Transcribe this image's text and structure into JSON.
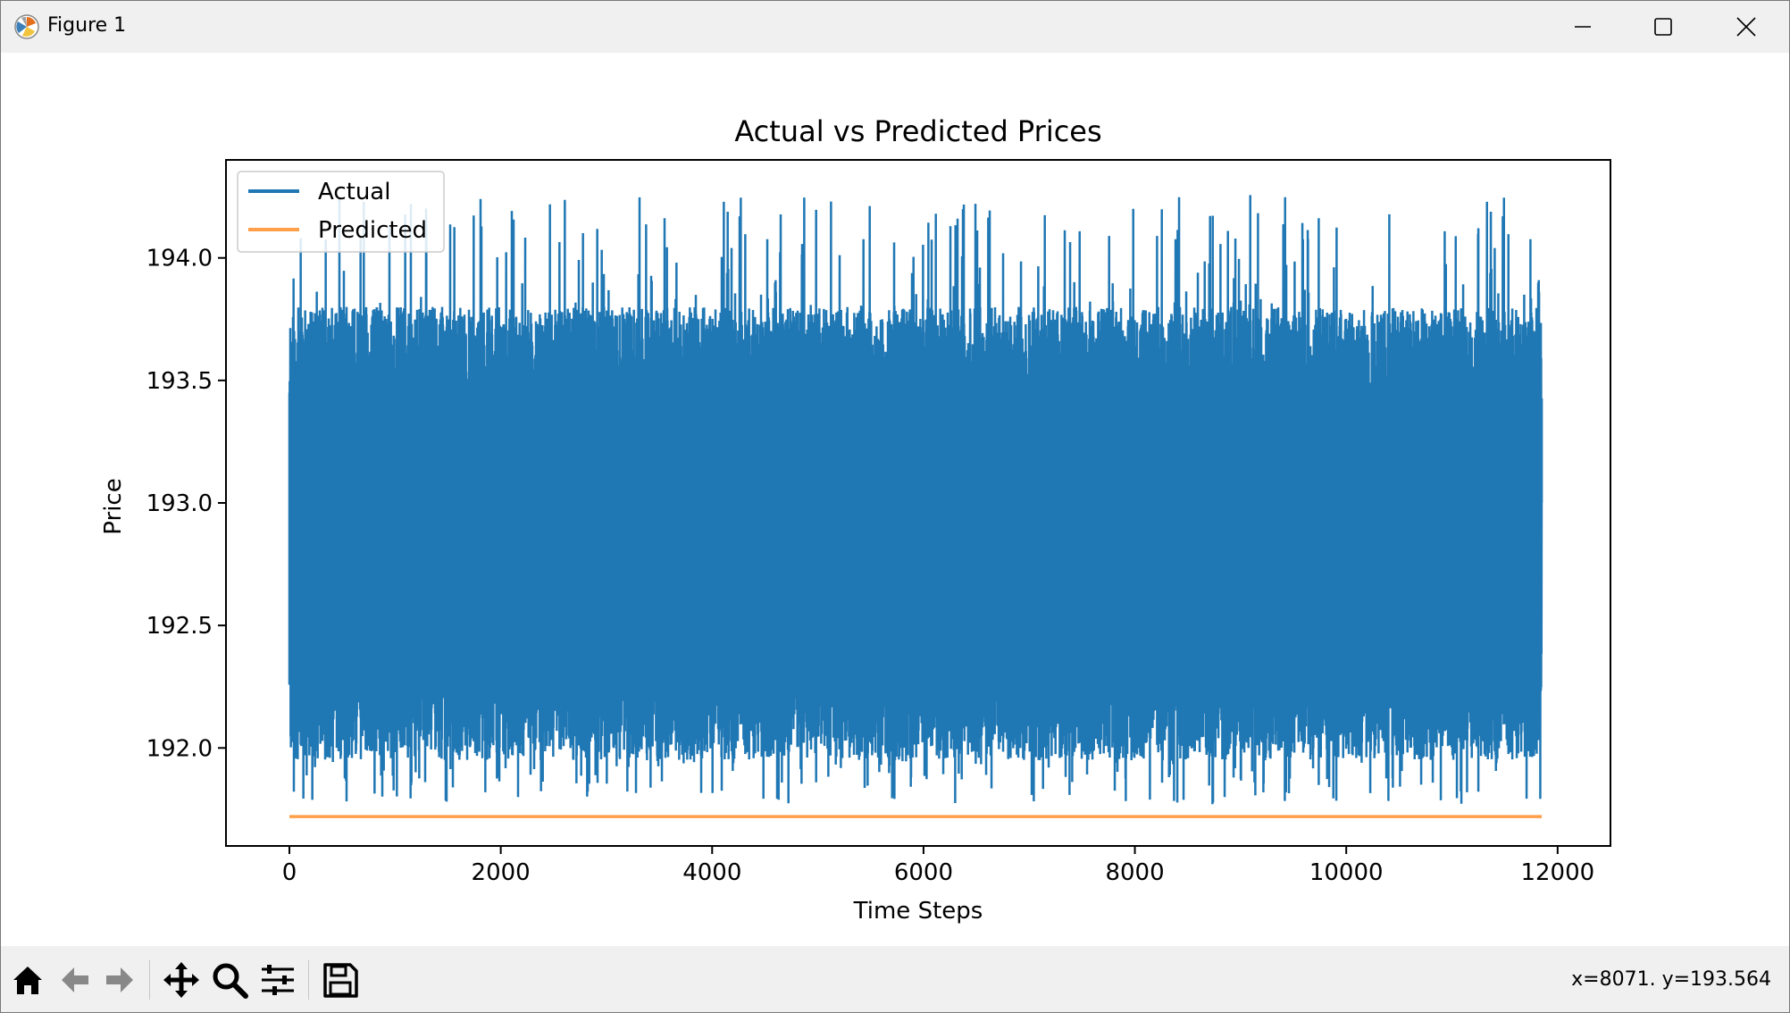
{
  "window": {
    "title": "Figure 1",
    "icons": [
      "matplotlib-logo-icon",
      "minimize-icon",
      "maximize-icon",
      "close-icon"
    ]
  },
  "toolbar": {
    "buttons": [
      "home-icon",
      "back-arrow-icon",
      "forward-arrow-icon",
      "pan-icon",
      "zoom-magnifier-icon",
      "configure-subplots-icon",
      "save-disk-icon"
    ],
    "coords": "x=8071. y=193.564"
  },
  "colors": {
    "actual": "#1f77b4",
    "predicted": "#ff7f0e"
  },
  "chart_data": {
    "type": "line",
    "title": "Actual vs Predicted Prices",
    "xlabel": "Time Steps",
    "ylabel": "Price",
    "xlim": [
      -600,
      12500
    ],
    "ylim": [
      191.6,
      194.4
    ],
    "xticks": [
      0,
      2000,
      4000,
      6000,
      8000,
      10000,
      12000
    ],
    "xtick_labels": [
      "0",
      "2000",
      "4000",
      "6000",
      "8000",
      "10000",
      "12000"
    ],
    "yticks": [
      192.0,
      192.5,
      193.0,
      193.5,
      194.0
    ],
    "ytick_labels": [
      "192.0",
      "192.5",
      "193.0",
      "193.5",
      "194.0"
    ],
    "grid": false,
    "legend": "upper left",
    "series": [
      {
        "name": "Actual",
        "x_range": [
          0,
          11850
        ],
        "band_low": 192.3,
        "band_high": 193.45,
        "typical_low": 191.95,
        "typical_high": 193.8,
        "min": 191.77,
        "max": 194.26,
        "start": 193.45,
        "end": 193.0
      },
      {
        "name": "Predicted",
        "x": [
          0,
          11850
        ],
        "values": [
          191.72,
          191.72
        ]
      }
    ]
  }
}
